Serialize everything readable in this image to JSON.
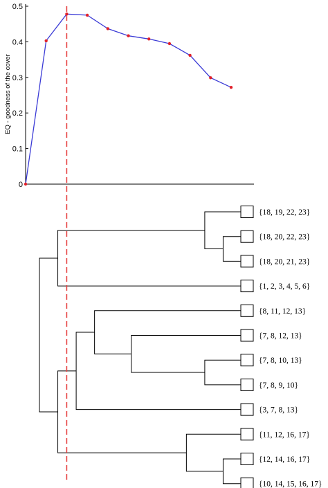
{
  "chart_data": [
    {
      "type": "line",
      "ylabel": "EQ - goodness of the cover",
      "ylim": [
        0,
        0.5
      ],
      "yticks": [
        "0",
        "0.1",
        "0.2",
        "0.3",
        "0.4",
        "0.5"
      ],
      "grid": false,
      "series": [
        {
          "x": [
            1,
            2,
            3,
            4,
            5,
            6,
            7,
            8,
            9,
            10,
            11
          ],
          "values": [
            0,
            0.403,
            0.478,
            0.475,
            0.437,
            0.417,
            0.408,
            0.395,
            0.362,
            0.299,
            0.272
          ]
        }
      ],
      "marked_x": 3,
      "colors": {
        "line": "#3b3bd6",
        "points": "#e0202a",
        "cut": "#e64040"
      }
    },
    {
      "type": "dendrogram",
      "leaves": [
        "{18, 19, 22, 23}",
        "{18, 20, 22, 23}",
        "{18, 20, 21, 23}",
        "{1, 2, 3, 4, 5, 6}",
        "{8, 11, 12, 13}",
        "{7, 8, 12, 13}",
        "{7, 8, 10, 13}",
        "{7, 8, 9, 10}",
        "{3, 7, 8, 13}",
        "{11, 12, 16, 17}",
        "{12, 14, 16, 17}",
        "{10, 14, 15, 16, 17}"
      ],
      "merges": [
        {
          "a": 1,
          "b": 2,
          "height": 1
        },
        {
          "a": 0,
          "b": "m0",
          "height": 2
        },
        {
          "a": "m1",
          "b": 3,
          "height": 10
        },
        {
          "a": 10,
          "b": 11,
          "height": 1
        },
        {
          "a": 9,
          "b": "m3",
          "height": 3
        },
        {
          "a": 6,
          "b": 7,
          "height": 2
        },
        {
          "a": 5,
          "b": "m5",
          "height": 6
        },
        {
          "a": 4,
          "b": "m6",
          "height": 8
        },
        {
          "a": "m7",
          "b": 8,
          "height": 9
        },
        {
          "a": "m8",
          "b": "m4",
          "height": 10
        },
        {
          "a": "m2",
          "b": "m9",
          "height": 11
        }
      ]
    }
  ]
}
